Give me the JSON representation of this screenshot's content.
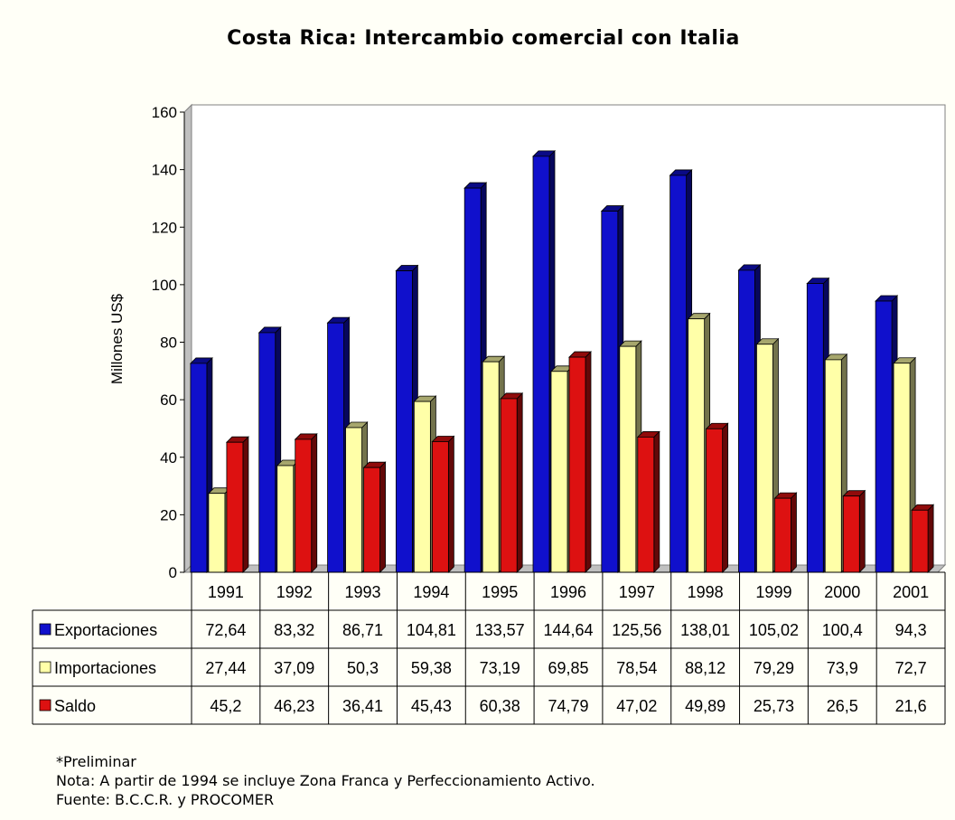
{
  "chart_data": {
    "type": "bar",
    "title": "Costa Rica: Intercambio comercial con Italia",
    "xlabel": "",
    "ylabel": "Millones US$",
    "ylim": [
      0,
      160
    ],
    "yticks": [
      0,
      20,
      40,
      60,
      80,
      100,
      120,
      140,
      160
    ],
    "categories": [
      "1991",
      "1992",
      "1993",
      "1994",
      "1995",
      "1996",
      "1997",
      "1998",
      "1999",
      "2000",
      "2001"
    ],
    "series": [
      {
        "name": "Exportaciones",
        "color": "#1010cc",
        "values": [
          72.64,
          83.32,
          86.71,
          104.81,
          133.57,
          144.64,
          125.56,
          138.01,
          105.02,
          100.4,
          94.3
        ],
        "labels": [
          "72,64",
          "83,32",
          "86,71",
          "104,81",
          "133,57",
          "144,64",
          "125,56",
          "138,01",
          "105,02",
          "100,4",
          "94,3"
        ]
      },
      {
        "name": "Importaciones",
        "color": "#ffffa8",
        "values": [
          27.44,
          37.09,
          50.3,
          59.38,
          73.19,
          69.85,
          78.54,
          88.12,
          79.29,
          73.9,
          72.7
        ],
        "labels": [
          "27,44",
          "37,09",
          "50,3",
          "59,38",
          "73,19",
          "69,85",
          "78,54",
          "88,12",
          "79,29",
          "73,9",
          "72,7"
        ]
      },
      {
        "name": "Saldo",
        "color": "#dd1111",
        "values": [
          45.2,
          46.23,
          36.41,
          45.43,
          60.38,
          74.79,
          47.02,
          49.89,
          25.73,
          26.5,
          21.6
        ],
        "labels": [
          "45,2",
          "46,23",
          "36,41",
          "45,43",
          "60,38",
          "74,79",
          "47,02",
          "49,89",
          "25,73",
          "26,5",
          "21,6"
        ]
      }
    ],
    "grid": false,
    "legend": "data table"
  },
  "notes": {
    "line1": "*Preliminar",
    "line2": "Nota: A partir de 1994 se incluye Zona Franca y Perfeccionamiento Activo.",
    "line3": "Fuente: B.C.C.R. y PROCOMER"
  }
}
